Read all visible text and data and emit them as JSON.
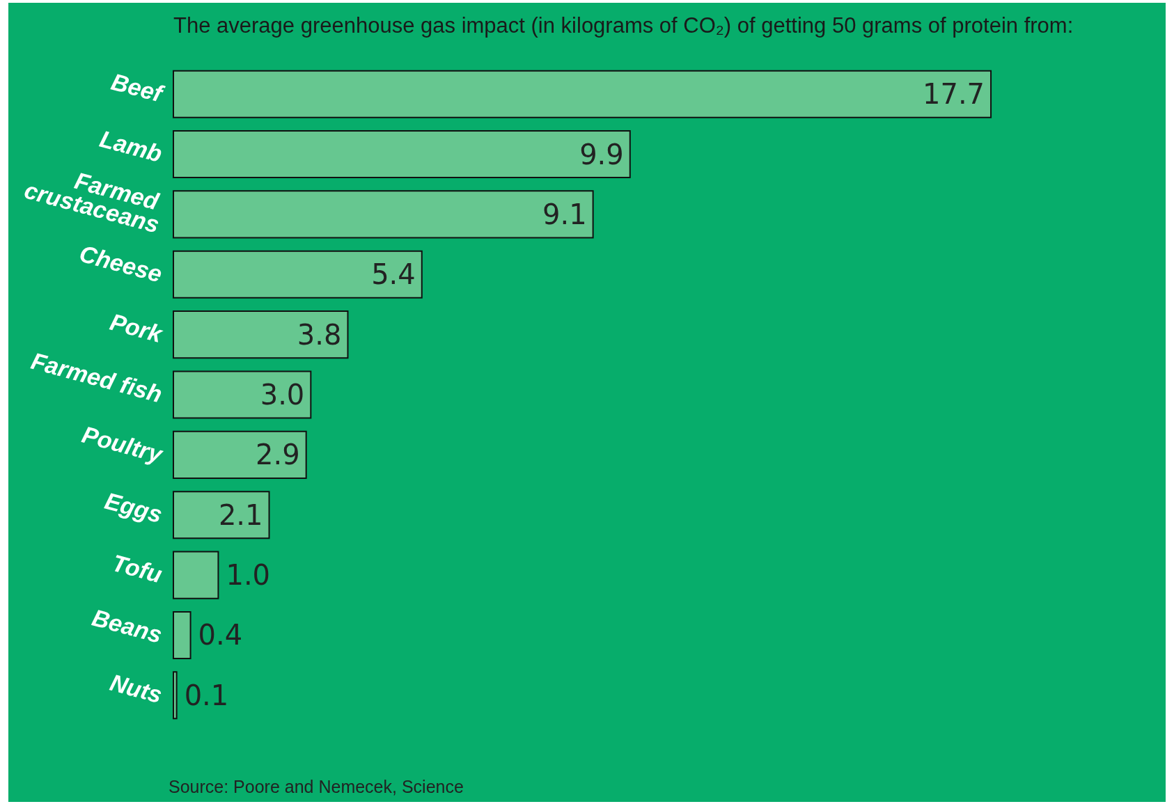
{
  "chart_data": {
    "type": "bar",
    "orientation": "horizontal",
    "title": "The average greenhouse gas impact (in kilograms of CO₂) of getting 50 grams of protein from:",
    "categories": [
      "Beef",
      "Lamb",
      "Farmed crustaceans",
      "Cheese",
      "Pork",
      "Farmed fish",
      "Poultry",
      "Eggs",
      "Tofu",
      "Beans",
      "Nuts"
    ],
    "values": [
      17.7,
      9.9,
      9.1,
      5.4,
      3.8,
      3.0,
      2.9,
      2.1,
      1.0,
      0.4,
      0.1
    ],
    "value_labels": [
      "17.7",
      "9.9",
      "9.1",
      "5.4",
      "3.8",
      "3.0",
      "2.9",
      "2.1",
      "1.0",
      "0.4",
      "0.1"
    ],
    "color": "#66c790",
    "tick_labels": "y",
    "annotations": [
      "Source: Poore and Nemecek, Science"
    ]
  }
}
